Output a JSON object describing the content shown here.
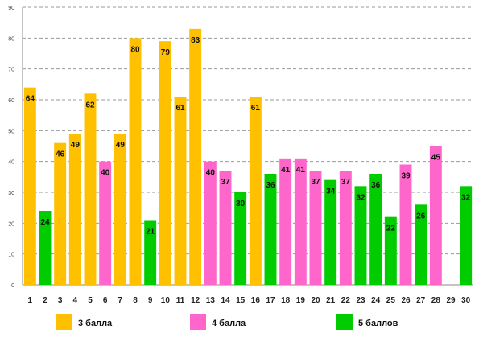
{
  "chart_data": {
    "type": "bar",
    "title": "",
    "xlabel": "",
    "ylabel": "",
    "ylim": [
      0,
      90
    ],
    "yticks": [
      0,
      10,
      20,
      30,
      40,
      50,
      60,
      70,
      80,
      90
    ],
    "grid": true,
    "categories": [
      "1",
      "2",
      "3",
      "4",
      "5",
      "6",
      "7",
      "8",
      "9",
      "10",
      "11",
      "12",
      "13",
      "14",
      "15",
      "16",
      "17",
      "18",
      "19",
      "20",
      "21",
      "22",
      "23",
      "24",
      "25",
      "26",
      "27",
      "28",
      "29",
      "30"
    ],
    "values": [
      64,
      24,
      46,
      49,
      62,
      40,
      49,
      80,
      21,
      79,
      61,
      83,
      40,
      37,
      30,
      61,
      36,
      41,
      41,
      37,
      34,
      37,
      32,
      36,
      22,
      39,
      26,
      45,
      null,
      32
    ],
    "groups": [
      "3",
      "5",
      "3",
      "3",
      "3",
      "4",
      "3",
      "3",
      "5",
      "3",
      "3",
      "3",
      "4",
      "4",
      "5",
      "3",
      "5",
      "4",
      "4",
      "4",
      "5",
      "4",
      "5",
      "5",
      "5",
      "4",
      "5",
      "4",
      null,
      "5"
    ],
    "series": [
      {
        "key": "3",
        "name": "3 балла",
        "color": "#FFC000"
      },
      {
        "key": "4",
        "name": "4 балла",
        "color": "#FF66CC"
      },
      {
        "key": "5",
        "name": "5 баллов",
        "color": "#00CC00"
      }
    ],
    "legend_position": "bottom"
  }
}
